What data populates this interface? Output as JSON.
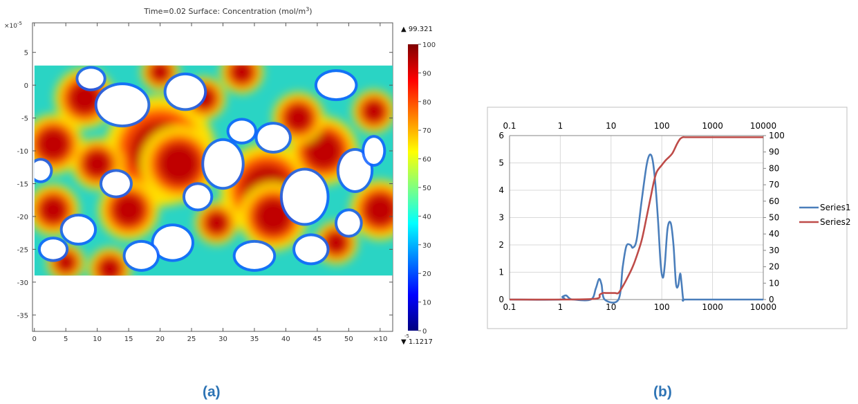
{
  "captions": {
    "a": "(a)",
    "b": "(b)"
  },
  "chart_data": [
    {
      "type": "heatmap",
      "title_prefix": "Time=0.02   Surface: Concentration (mol/m",
      "title_sup": "3",
      "title_suffix": ")",
      "x_exponent_label": "×10",
      "x_exponent": "-5",
      "y_exponent_label": "×10",
      "y_exponent": "-5",
      "x_ticks": [
        "0",
        "5",
        "10",
        "15",
        "20",
        "25",
        "30",
        "35",
        "40",
        "45",
        "50",
        "×10"
      ],
      "x_tick_values": [
        0,
        5,
        10,
        15,
        20,
        25,
        30,
        35,
        40,
        45,
        50,
        55
      ],
      "y_ticks": [
        "5",
        "0",
        "-5",
        "-10",
        "-15",
        "-20",
        "-25",
        "-30",
        "-35"
      ],
      "y_tick_values": [
        5,
        0,
        -5,
        -10,
        -15,
        -20,
        -25,
        -30,
        -35
      ],
      "xlim": [
        -0.3,
        57
      ],
      "ylim": [
        -37.5,
        9.5
      ],
      "domain_x": [
        0,
        57
      ],
      "domain_y": [
        -29,
        3
      ],
      "colorbar": {
        "max_marker": "▲ 99.321",
        "min_marker": "▼ 1.1217",
        "ticks": [
          "100",
          "90",
          "80",
          "70",
          "60",
          "50",
          "40",
          "30",
          "20",
          "10",
          "0"
        ],
        "tick_values": [
          100,
          90,
          80,
          70,
          60,
          50,
          40,
          30,
          20,
          10,
          0
        ],
        "range": [
          0,
          100
        ],
        "colors": [
          "#00007f",
          "#0000ff",
          "#0080ff",
          "#00ffff",
          "#80ff80",
          "#ffff00",
          "#ff8000",
          "#ff0000",
          "#7f0000"
        ]
      },
      "background_color": "#ffffff",
      "hotspots": [
        {
          "x": 20,
          "y": -10,
          "r": 6.5
        },
        {
          "x": 23,
          "y": -12,
          "r": 4.5
        },
        {
          "x": 37,
          "y": -16,
          "r": 5.5
        },
        {
          "x": 38,
          "y": -20,
          "r": 4
        },
        {
          "x": 8,
          "y": -2,
          "r": 3.5
        },
        {
          "x": 3,
          "y": -9,
          "r": 3.5
        },
        {
          "x": 10,
          "y": -12,
          "r": 3
        },
        {
          "x": 15,
          "y": -19,
          "r": 3.5
        },
        {
          "x": 3,
          "y": -19,
          "r": 3
        },
        {
          "x": 46,
          "y": -10,
          "r": 4
        },
        {
          "x": 55,
          "y": -19,
          "r": 3.5
        },
        {
          "x": 42,
          "y": -5,
          "r": 3
        },
        {
          "x": 27,
          "y": -2,
          "r": 2.5
        },
        {
          "x": 33,
          "y": 2,
          "r": 2.5
        },
        {
          "x": 20,
          "y": 2,
          "r": 2.2
        },
        {
          "x": 29,
          "y": -21,
          "r": 2.5
        },
        {
          "x": 12,
          "y": -28,
          "r": 2.5
        },
        {
          "x": 5,
          "y": -27,
          "r": 2.2
        },
        {
          "x": 48,
          "y": -24,
          "r": 2.5
        },
        {
          "x": 54,
          "y": -4,
          "r": 2.5
        }
      ],
      "pores": [
        {
          "x": 14,
          "y": -3,
          "rx": 4,
          "ry": 3
        },
        {
          "x": 24,
          "y": -1,
          "rx": 3,
          "ry": 2.5
        },
        {
          "x": 7,
          "y": -22,
          "rx": 2.5,
          "ry": 2
        },
        {
          "x": 13,
          "y": -15,
          "rx": 2.2,
          "ry": 1.8
        },
        {
          "x": 22,
          "y": -24,
          "rx": 3,
          "ry": 2.5
        },
        {
          "x": 30,
          "y": -12,
          "rx": 3,
          "ry": 3.5
        },
        {
          "x": 43,
          "y": -17,
          "rx": 3.5,
          "ry": 4
        },
        {
          "x": 48,
          "y": 0,
          "rx": 3,
          "ry": 2
        },
        {
          "x": 51,
          "y": -13,
          "rx": 2.5,
          "ry": 3
        },
        {
          "x": 35,
          "y": -26,
          "rx": 3,
          "ry": 2
        },
        {
          "x": 44,
          "y": -25,
          "rx": 2.5,
          "ry": 2
        },
        {
          "x": 1,
          "y": -13,
          "rx": 1.5,
          "ry": 1.5
        },
        {
          "x": 17,
          "y": -26,
          "rx": 2.5,
          "ry": 2
        },
        {
          "x": 26,
          "y": -17,
          "rx": 2,
          "ry": 1.8
        },
        {
          "x": 9,
          "y": 1,
          "rx": 2,
          "ry": 1.5
        },
        {
          "x": 38,
          "y": -8,
          "rx": 2.5,
          "ry": 2
        },
        {
          "x": 54,
          "y": -10,
          "rx": 1.5,
          "ry": 2
        },
        {
          "x": 3,
          "y": -25,
          "rx": 2,
          "ry": 1.5
        },
        {
          "x": 33,
          "y": -7,
          "rx": 2,
          "ry": 1.6
        },
        {
          "x": 50,
          "y": -21,
          "rx": 1.8,
          "ry": 1.8
        }
      ]
    },
    {
      "type": "line",
      "x_scale": "log",
      "xlim": [
        0.1,
        10000
      ],
      "x_ticks": [
        "0.1",
        "1",
        "10",
        "100",
        "1000",
        "10000"
      ],
      "x_tick_values": [
        0.1,
        1,
        10,
        100,
        1000,
        10000
      ],
      "y_left_ticks": [
        "0",
        "1",
        "2",
        "3",
        "4",
        "5",
        "6"
      ],
      "y_left_tick_values": [
        0,
        1,
        2,
        3,
        4,
        5,
        6
      ],
      "y_left_lim": [
        0,
        6
      ],
      "y_right_ticks": [
        "0",
        "10",
        "20",
        "30",
        "40",
        "50",
        "60",
        "70",
        "80",
        "90",
        "100"
      ],
      "y_right_tick_values": [
        0,
        10,
        20,
        30,
        40,
        50,
        60,
        70,
        80,
        90,
        100
      ],
      "y_right_lim": [
        0,
        100
      ],
      "grid": true,
      "legend_position": "right",
      "series": [
        {
          "name": "Series1",
          "axis": "left",
          "color": "#4a7ebb",
          "x": [
            0.1,
            1,
            1.1,
            1.3,
            1.5,
            1.8,
            4,
            5,
            5.8,
            6.5,
            7.5,
            14,
            17,
            20,
            24,
            27,
            32,
            40,
            50,
            58,
            66,
            75,
            85,
            95,
            105,
            115,
            130,
            150,
            170,
            190,
            210,
            230,
            245,
            265,
            290,
            1000,
            10000
          ],
          "y": [
            0,
            0,
            0.1,
            0.15,
            0.05,
            0,
            0,
            0.4,
            0.75,
            0.55,
            0,
            0,
            1.2,
            1.95,
            2.0,
            1.9,
            2.2,
            3.6,
            4.9,
            5.3,
            5.1,
            4.2,
            2.8,
            1.3,
            0.8,
            1.3,
            2.6,
            2.8,
            2.0,
            0.6,
            0.5,
            0.95,
            0.6,
            0,
            0,
            0,
            0
          ]
        },
        {
          "name": "Series2",
          "axis": "right",
          "color": "#be4b48",
          "x": [
            0.1,
            1,
            5,
            6,
            7,
            8,
            10,
            12,
            14,
            17,
            20,
            25,
            30,
            40,
            50,
            60,
            70,
            80,
            100,
            120,
            140,
            160,
            180,
            200,
            230,
            260,
            300,
            500,
            1000,
            10000
          ],
          "y": [
            0,
            0,
            0.5,
            3,
            4,
            4,
            4,
            4,
            4,
            8,
            12,
            18,
            24,
            36,
            50,
            62,
            72,
            78,
            82,
            85,
            87,
            89,
            92,
            95,
            98,
            99,
            99,
            99,
            99,
            99
          ]
        }
      ]
    }
  ]
}
